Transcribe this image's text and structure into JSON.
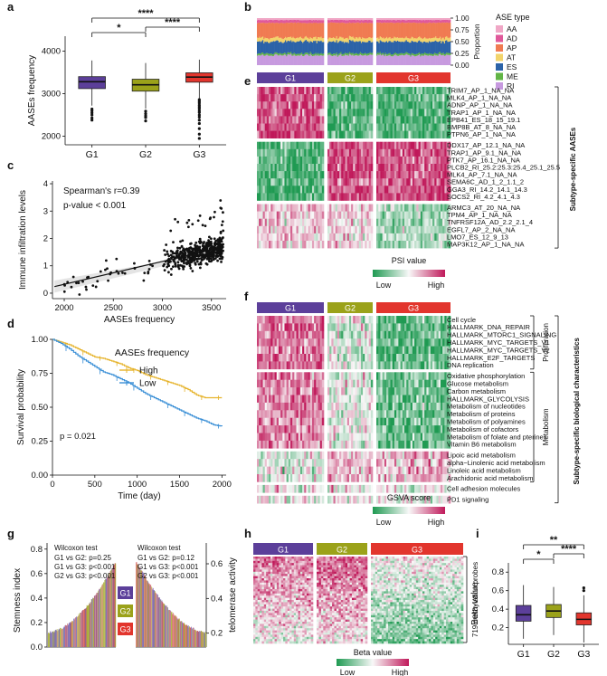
{
  "panel_letters": {
    "a": "a",
    "b": "b",
    "c": "c",
    "d": "d",
    "e": "e",
    "f": "f",
    "g": "g",
    "h": "h",
    "i": "i"
  },
  "groups": [
    "G1",
    "G2",
    "G3"
  ],
  "colors": {
    "G1": "#5c3f9a",
    "G2": "#9ba21a",
    "G3": "#e2352d",
    "high": "#c0195a",
    "low": "#1f9a52",
    "high_km": "#e6b32b",
    "low_km": "#3a8fd6"
  },
  "chart_data": [
    {
      "panel": "a",
      "type": "box",
      "ylabel": "AASEs frequency",
      "yticks": [
        2000,
        3000,
        4000
      ],
      "ylim": [
        1800,
        4350
      ],
      "categories": [
        "G1",
        "G2",
        "G3"
      ],
      "boxes": [
        {
          "name": "G1",
          "whislo": 2720,
          "q1": 3120,
          "med": 3280,
          "q3": 3400,
          "whishi": 3780,
          "outliers": [
            2640,
            2600,
            2550,
            2500,
            2430,
            2380
          ]
        },
        {
          "name": "G2",
          "whislo": 2650,
          "q1": 3060,
          "med": 3210,
          "q3": 3340,
          "whishi": 3720,
          "outliers": [
            2590,
            2530,
            2480,
            2440,
            2360
          ]
        },
        {
          "name": "G3",
          "whislo": 2890,
          "q1": 3270,
          "med": 3390,
          "q3": 3490,
          "whishi": 3800,
          "outliers": [
            2860,
            2820,
            2780,
            2730,
            2690,
            2650,
            2600,
            2560,
            2500,
            2450,
            2380,
            2300,
            2180,
            2050,
            1950
          ]
        }
      ],
      "significance": [
        {
          "pair": [
            "G1",
            "G2"
          ],
          "label": "*"
        },
        {
          "pair": [
            "G2",
            "G3"
          ],
          "label": "****"
        },
        {
          "pair": [
            "G1",
            "G3"
          ],
          "label": "****"
        }
      ]
    },
    {
      "panel": "b",
      "type": "stacked-bar",
      "ylabel": "Proportion",
      "yticks": [
        "0.00",
        "0.25",
        "0.50",
        "0.75",
        "1.00"
      ],
      "legend_title": "ASE type",
      "series": [
        {
          "name": "AA",
          "color": "#f0a7c6",
          "value": 0.04
        },
        {
          "name": "AD",
          "color": "#e0589a",
          "value": 0.06
        },
        {
          "name": "AP",
          "color": "#f07b52",
          "value": 0.32
        },
        {
          "name": "AT",
          "color": "#f2d46b",
          "value": 0.08
        },
        {
          "name": "ES",
          "color": "#2c63a8",
          "value": 0.25
        },
        {
          "name": "ME",
          "color": "#62b546",
          "value": 0.04
        },
        {
          "name": "RI",
          "color": "#c79adf",
          "value": 0.21
        }
      ]
    },
    {
      "panel": "c",
      "type": "scatter",
      "xlabel": "AASEs frequency",
      "ylabel": "Immune infiltration levels",
      "xticks": [
        2000,
        2500,
        3000,
        3500
      ],
      "yticks": [
        0,
        1,
        2,
        3,
        4
      ],
      "xlim": [
        1880,
        3650
      ],
      "ylim": [
        -0.2,
        4.1
      ],
      "annotations": [
        "Spearman's r=0.39",
        "p-value < 0.001"
      ],
      "fit": {
        "x0": 1900,
        "y0": 0.24,
        "x1": 3620,
        "y1": 1.68
      },
      "n_points": 520
    },
    {
      "panel": "d",
      "type": "line",
      "xlabel": "Time (day)",
      "ylabel": "Survival probability",
      "xticks": [
        0,
        500,
        1000,
        1500,
        2000
      ],
      "yticks": [
        "0.00",
        "0.25",
        "0.50",
        "0.75",
        "1.00"
      ],
      "xlim": [
        0,
        2050
      ],
      "ylim": [
        0,
        1
      ],
      "legend_title": "AASEs frequency",
      "annotation": "p = 0.021",
      "series": [
        {
          "name": "High",
          "x": [
            0,
            100,
            200,
            300,
            400,
            500,
            600,
            700,
            800,
            900,
            1000,
            1100,
            1200,
            1300,
            1400,
            1500,
            1600,
            1700,
            1800,
            1900,
            2000
          ],
          "y": [
            1,
            0.98,
            0.96,
            0.93,
            0.9,
            0.87,
            0.86,
            0.84,
            0.82,
            0.79,
            0.77,
            0.74,
            0.72,
            0.7,
            0.68,
            0.66,
            0.63,
            0.59,
            0.57,
            0.57,
            0.57
          ]
        },
        {
          "name": "Low",
          "x": [
            0,
            100,
            200,
            300,
            400,
            500,
            600,
            700,
            800,
            900,
            1000,
            1100,
            1200,
            1300,
            1400,
            1500,
            1600,
            1700,
            1800,
            1900,
            2000
          ],
          "y": [
            1,
            0.97,
            0.93,
            0.88,
            0.84,
            0.8,
            0.76,
            0.74,
            0.71,
            0.68,
            0.64,
            0.6,
            0.57,
            0.54,
            0.51,
            0.48,
            0.45,
            0.42,
            0.4,
            0.37,
            0.36
          ]
        }
      ]
    },
    {
      "panel": "e",
      "type": "heatmap",
      "legend_title": "PSI value",
      "legend_low": "Low",
      "legend_high": "High",
      "side_label": "Subtype-specific AASEs",
      "row_groups": [
        [
          "TRIM7_AP_1_NA_NA",
          "MLK4_AP_1_NA_NA",
          "ADNP_AP_1_NA_NA",
          "TRAP1_AP_1_NA_NA",
          "EPB41_ES_18_15_19.1",
          "BMP8B_AT_8_NA_NA",
          "PTPN6_AP_1_NA_NA"
        ],
        [
          "DDX17_AP_12.1_NA_NA",
          "TRAP1_AP_9.1_NA_NA",
          "PTK7_AP_16.1_NA_NA",
          "PLCB2_RI_25.2:25.3:25.4_25.1_25.5",
          "MLK4_AP_7.1_NA_NA",
          "SEMA6C_AD_1_2_1.1_2",
          "GGA3_RI_14.2_14.1_14.3",
          "SOCS2_RI_4.2_4.1_4.3"
        ],
        [
          "ARMC3_AT_20_NA_NA",
          "TPM4_AP_1_NA_NA",
          "TNFRSF12A_AD_2.2_2.1_4",
          "EGFL7_AP_2_NA_NA",
          "LMO7_ES_12_9_13",
          "MAP3K12_AP_1_NA_NA"
        ]
      ],
      "group_pattern": [
        [
          1,
          -1,
          -1
        ],
        [
          -1,
          1,
          1
        ],
        [
          0.3,
          0.2,
          -0.5
        ]
      ]
    },
    {
      "panel": "f",
      "type": "heatmap",
      "legend_title": "GSVA score",
      "legend_low": "Low",
      "legend_high": "High",
      "side_label": "Subtype-specific biological characteristics",
      "bracket_labels": [
        "Proliferation",
        "Metabolism"
      ],
      "row_groups": [
        [
          "Cell cycle",
          "HALLMARK_DNA_REPAIR",
          "HALLMARK_MTORC1_SIGNALING",
          "HALLMARK_MYC_TARGETS_V1",
          "HALLMARK_MYC_TARGETS_V2",
          "HALLMARK_E2F_TARGETS",
          "DNA replication"
        ],
        [
          "Oxidative phosphorylation",
          "Glucose metabolism",
          "Carbon metabolism",
          "HALLMARK_GLYCOLYSIS",
          "Metabolism of nucleotides",
          "Metabolism of proteins",
          "Metabolism of polyamines",
          "Metabolism of cofactors",
          "Metabolism of folate and pterines",
          "Vitamin B6 metabolism"
        ],
        [
          "Lipoic acid metabolism",
          "alpha−Linolenic acid metabolism",
          "Linoleic acid metabolism",
          "Arachidonic acid metabolism"
        ],
        [
          "Cell adhesion molecules"
        ],
        [
          "PD1 signaling"
        ]
      ],
      "group_pattern": [
        [
          0.8,
          -0.2,
          -0.9
        ],
        [
          0.7,
          -0.1,
          -0.8
        ],
        [
          -0.1,
          0.3,
          0.4
        ],
        [
          0,
          0,
          0
        ],
        [
          0,
          0,
          0
        ]
      ]
    },
    {
      "panel": "g",
      "type": "bar",
      "ylabel_left": "Stemness index",
      "ylabel_right": "telomerase activity",
      "yticks_left": [
        "0.0",
        "0.2",
        "0.4",
        "0.6",
        "0.8"
      ],
      "yticks_right": [
        "0.2",
        "0.4",
        "0.6"
      ],
      "tests": [
        {
          "title": "Wilcoxon test",
          "lines": [
            "G1 vs G2: p=0.25",
            "G1 vs G3: p<0.001",
            "G2 vs G3: p<0.001"
          ]
        },
        {
          "title": "Wilcoxon test",
          "lines": [
            "G1 vs G2: p=0.12",
            "G1 vs G3: p<0.001",
            "G2 vs G3: p<0.001"
          ]
        }
      ],
      "legend": [
        "G1",
        "G2",
        "G3"
      ]
    },
    {
      "panel": "h",
      "type": "heatmap",
      "legend_title": "Beta value",
      "legend_low": "Low",
      "legend_high": "High",
      "side_label": "719 methylation probes"
    },
    {
      "panel": "i",
      "type": "box",
      "ylabel": "Beta-value",
      "yticks": [
        "0.2",
        "0.4",
        "0.6",
        "0.8"
      ],
      "ylim": [
        0.02,
        0.9
      ],
      "categories": [
        "G1",
        "G2",
        "G3"
      ],
      "boxes": [
        {
          "name": "G1",
          "whislo": 0.08,
          "q1": 0.27,
          "med": 0.34,
          "q3": 0.44,
          "whishi": 0.66,
          "outliers": []
        },
        {
          "name": "G2",
          "whislo": 0.12,
          "q1": 0.31,
          "med": 0.38,
          "q3": 0.45,
          "whishi": 0.64,
          "outliers": []
        },
        {
          "name": "G3",
          "whislo": 0.04,
          "q1": 0.23,
          "med": 0.29,
          "q3": 0.36,
          "whishi": 0.55,
          "outliers": [
            0.6,
            0.63
          ]
        }
      ],
      "significance": [
        {
          "pair": [
            "G1",
            "G2"
          ],
          "label": "*"
        },
        {
          "pair": [
            "G2",
            "G3"
          ],
          "label": "****"
        },
        {
          "pair": [
            "G1",
            "G3"
          ],
          "label": "**"
        }
      ]
    }
  ]
}
